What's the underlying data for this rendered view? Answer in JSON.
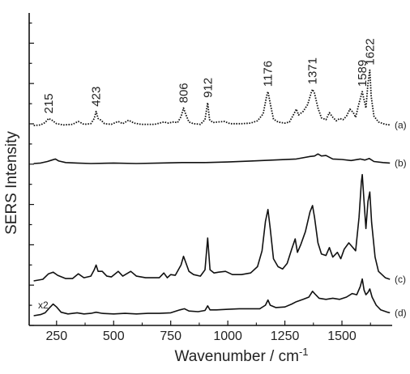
{
  "chart_data": {
    "type": "line",
    "xlabel": "Wavenumber / cm",
    "xlabel_superscript": "-1",
    "ylabel": "SERS Intensity",
    "xlim": [
      130,
      1720
    ],
    "xticks": [
      250,
      500,
      750,
      1000,
      1250,
      1500
    ],
    "scale_note": "x2",
    "series": [
      {
        "name": "(a)",
        "style": "dotted",
        "baseline": 0,
        "points": [
          [
            150,
            0
          ],
          [
            180,
            1
          ],
          [
            200,
            5
          ],
          [
            215,
            12
          ],
          [
            230,
            9
          ],
          [
            250,
            3
          ],
          [
            280,
            1
          ],
          [
            320,
            2
          ],
          [
            345,
            7
          ],
          [
            370,
            2
          ],
          [
            400,
            3
          ],
          [
            415,
            12
          ],
          [
            423,
            24
          ],
          [
            432,
            12
          ],
          [
            445,
            9
          ],
          [
            460,
            3
          ],
          [
            490,
            2
          ],
          [
            520,
            7
          ],
          [
            540,
            3
          ],
          [
            565,
            9
          ],
          [
            590,
            4
          ],
          [
            620,
            2
          ],
          [
            680,
            2
          ],
          [
            720,
            6
          ],
          [
            740,
            4
          ],
          [
            760,
            6
          ],
          [
            780,
            5
          ],
          [
            795,
            15
          ],
          [
            806,
            30
          ],
          [
            815,
            20
          ],
          [
            830,
            6
          ],
          [
            850,
            3
          ],
          [
            880,
            2
          ],
          [
            900,
            10
          ],
          [
            912,
            39
          ],
          [
            920,
            10
          ],
          [
            935,
            5
          ],
          [
            955,
            6
          ],
          [
            985,
            7
          ],
          [
            1010,
            3
          ],
          [
            1060,
            3
          ],
          [
            1100,
            4
          ],
          [
            1130,
            8
          ],
          [
            1155,
            20
          ],
          [
            1170,
            50
          ],
          [
            1176,
            58
          ],
          [
            1186,
            38
          ],
          [
            1200,
            11
          ],
          [
            1220,
            6
          ],
          [
            1250,
            4
          ],
          [
            1270,
            6
          ],
          [
            1290,
            20
          ],
          [
            1300,
            28
          ],
          [
            1310,
            18
          ],
          [
            1330,
            24
          ],
          [
            1350,
            36
          ],
          [
            1365,
            56
          ],
          [
            1371,
            62
          ],
          [
            1380,
            55
          ],
          [
            1395,
            30
          ],
          [
            1410,
            13
          ],
          [
            1430,
            10
          ],
          [
            1445,
            22
          ],
          [
            1460,
            14
          ],
          [
            1475,
            8
          ],
          [
            1490,
            12
          ],
          [
            1505,
            10
          ],
          [
            1520,
            16
          ],
          [
            1535,
            28
          ],
          [
            1550,
            22
          ],
          [
            1560,
            14
          ],
          [
            1575,
            38
          ],
          [
            1589,
            58
          ],
          [
            1597,
            44
          ],
          [
            1605,
            30
          ],
          [
            1614,
            72
          ],
          [
            1622,
            95
          ],
          [
            1628,
            50
          ],
          [
            1640,
            16
          ],
          [
            1660,
            6
          ],
          [
            1690,
            2
          ],
          [
            1710,
            1
          ]
        ]
      },
      {
        "name": "(b)",
        "style": "solid",
        "baseline": 0,
        "points": [
          [
            150,
            0
          ],
          [
            180,
            1
          ],
          [
            210,
            4
          ],
          [
            230,
            7
          ],
          [
            245,
            9
          ],
          [
            260,
            5
          ],
          [
            290,
            2
          ],
          [
            340,
            1
          ],
          [
            400,
            0
          ],
          [
            500,
            1
          ],
          [
            600,
            0
          ],
          [
            700,
            1
          ],
          [
            800,
            2
          ],
          [
            900,
            2
          ],
          [
            1000,
            3
          ],
          [
            1100,
            5
          ],
          [
            1200,
            7
          ],
          [
            1300,
            9
          ],
          [
            1360,
            14
          ],
          [
            1380,
            15
          ],
          [
            1395,
            19
          ],
          [
            1410,
            15
          ],
          [
            1430,
            16
          ],
          [
            1460,
            9
          ],
          [
            1500,
            8
          ],
          [
            1540,
            6
          ],
          [
            1580,
            9
          ],
          [
            1600,
            7
          ],
          [
            1620,
            10
          ],
          [
            1640,
            4
          ],
          [
            1680,
            2
          ],
          [
            1710,
            1
          ]
        ]
      },
      {
        "name": "(c)",
        "style": "solid",
        "baseline": 0,
        "points": [
          [
            150,
            0
          ],
          [
            190,
            2
          ],
          [
            215,
            9
          ],
          [
            235,
            11
          ],
          [
            255,
            7
          ],
          [
            290,
            3
          ],
          [
            320,
            3
          ],
          [
            345,
            9
          ],
          [
            370,
            4
          ],
          [
            400,
            6
          ],
          [
            415,
            14
          ],
          [
            423,
            20
          ],
          [
            432,
            12
          ],
          [
            450,
            12
          ],
          [
            470,
            6
          ],
          [
            490,
            5
          ],
          [
            520,
            12
          ],
          [
            540,
            6
          ],
          [
            575,
            12
          ],
          [
            600,
            6
          ],
          [
            640,
            4
          ],
          [
            700,
            4
          ],
          [
            720,
            10
          ],
          [
            735,
            4
          ],
          [
            750,
            8
          ],
          [
            770,
            7
          ],
          [
            795,
            20
          ],
          [
            806,
            31
          ],
          [
            815,
            24
          ],
          [
            830,
            12
          ],
          [
            850,
            8
          ],
          [
            880,
            6
          ],
          [
            900,
            14
          ],
          [
            912,
            54
          ],
          [
            922,
            14
          ],
          [
            940,
            10
          ],
          [
            960,
            11
          ],
          [
            990,
            12
          ],
          [
            1020,
            8
          ],
          [
            1060,
            8
          ],
          [
            1100,
            10
          ],
          [
            1130,
            18
          ],
          [
            1150,
            38
          ],
          [
            1165,
            75
          ],
          [
            1176,
            90
          ],
          [
            1186,
            66
          ],
          [
            1200,
            28
          ],
          [
            1220,
            18
          ],
          [
            1240,
            15
          ],
          [
            1260,
            22
          ],
          [
            1280,
            40
          ],
          [
            1295,
            53
          ],
          [
            1305,
            36
          ],
          [
            1320,
            46
          ],
          [
            1340,
            62
          ],
          [
            1360,
            87
          ],
          [
            1371,
            95
          ],
          [
            1380,
            80
          ],
          [
            1395,
            48
          ],
          [
            1410,
            34
          ],
          [
            1430,
            32
          ],
          [
            1445,
            42
          ],
          [
            1460,
            30
          ],
          [
            1480,
            36
          ],
          [
            1495,
            28
          ],
          [
            1510,
            40
          ],
          [
            1530,
            48
          ],
          [
            1545,
            43
          ],
          [
            1560,
            38
          ],
          [
            1575,
            80
          ],
          [
            1585,
            125
          ],
          [
            1589,
            134
          ],
          [
            1597,
            100
          ],
          [
            1605,
            66
          ],
          [
            1614,
            100
          ],
          [
            1622,
            112
          ],
          [
            1630,
            74
          ],
          [
            1645,
            30
          ],
          [
            1660,
            12
          ],
          [
            1690,
            4
          ],
          [
            1710,
            2
          ]
        ]
      },
      {
        "name": "(d)",
        "style": "solid",
        "baseline": 0,
        "points": [
          [
            150,
            0
          ],
          [
            180,
            2
          ],
          [
            200,
            5
          ],
          [
            220,
            14
          ],
          [
            235,
            20
          ],
          [
            250,
            15
          ],
          [
            270,
            6
          ],
          [
            300,
            3
          ],
          [
            340,
            5
          ],
          [
            370,
            3
          ],
          [
            400,
            4
          ],
          [
            423,
            6
          ],
          [
            450,
            4
          ],
          [
            500,
            3
          ],
          [
            550,
            4
          ],
          [
            600,
            3
          ],
          [
            650,
            4
          ],
          [
            700,
            4
          ],
          [
            750,
            5
          ],
          [
            790,
            10
          ],
          [
            810,
            12
          ],
          [
            830,
            8
          ],
          [
            870,
            7
          ],
          [
            900,
            9
          ],
          [
            912,
            17
          ],
          [
            922,
            10
          ],
          [
            950,
            10
          ],
          [
            1000,
            11
          ],
          [
            1050,
            12
          ],
          [
            1100,
            12
          ],
          [
            1140,
            12
          ],
          [
            1165,
            18
          ],
          [
            1176,
            27
          ],
          [
            1186,
            18
          ],
          [
            1210,
            14
          ],
          [
            1250,
            15
          ],
          [
            1280,
            20
          ],
          [
            1300,
            24
          ],
          [
            1330,
            28
          ],
          [
            1355,
            32
          ],
          [
            1371,
            42
          ],
          [
            1385,
            36
          ],
          [
            1400,
            30
          ],
          [
            1430,
            28
          ],
          [
            1460,
            30
          ],
          [
            1490,
            28
          ],
          [
            1520,
            32
          ],
          [
            1545,
            38
          ],
          [
            1565,
            36
          ],
          [
            1580,
            50
          ],
          [
            1589,
            63
          ],
          [
            1597,
            44
          ],
          [
            1605,
            36
          ],
          [
            1614,
            40
          ],
          [
            1622,
            46
          ],
          [
            1632,
            32
          ],
          [
            1650,
            18
          ],
          [
            1670,
            10
          ],
          [
            1700,
            6
          ],
          [
            1710,
            5
          ]
        ]
      }
    ],
    "annotations": [
      {
        "x": 215,
        "label": "215",
        "series": 0
      },
      {
        "x": 423,
        "label": "423",
        "series": 0
      },
      {
        "x": 806,
        "label": "806",
        "series": 0
      },
      {
        "x": 912,
        "label": "912",
        "series": 0
      },
      {
        "x": 1176,
        "label": "1176",
        "series": 0
      },
      {
        "x": 1371,
        "label": "1371",
        "series": 0
      },
      {
        "x": 1589,
        "label": "1589",
        "series": 0
      },
      {
        "x": 1622,
        "label": "1622",
        "series": 0
      }
    ]
  }
}
